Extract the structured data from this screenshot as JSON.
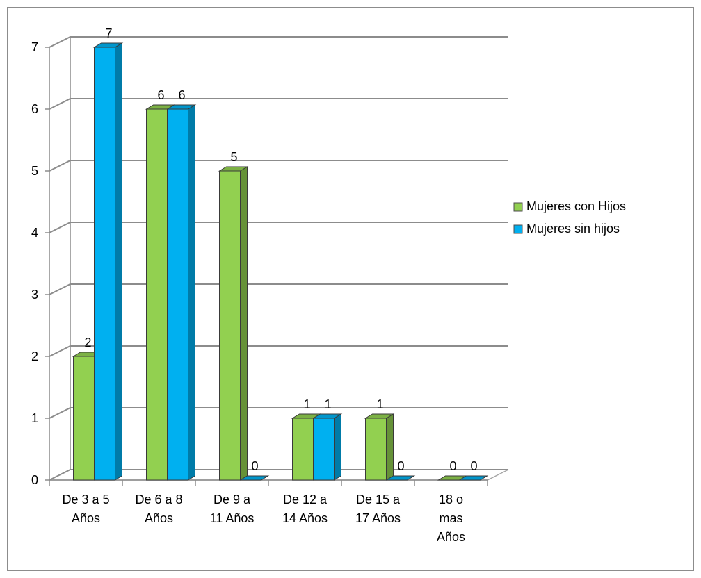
{
  "chart_data": {
    "type": "bar",
    "categories": [
      [
        "De 3 a 5",
        "Años"
      ],
      [
        "De 6 a 8",
        "Años"
      ],
      [
        "De 9 a",
        "11 Años"
      ],
      [
        "De 12 a",
        "14 Años"
      ],
      [
        "De 15 a",
        "17 Años"
      ],
      [
        "18 o",
        "mas",
        "Años"
      ]
    ],
    "series": [
      {
        "name": "Mujeres con Hijos",
        "values": [
          2,
          6,
          5,
          1,
          1,
          0
        ],
        "color": "#92D050"
      },
      {
        "name": "Mujeres sin hijos",
        "values": [
          7,
          6,
          0,
          1,
          0,
          0
        ],
        "color": "#00B0F0"
      }
    ],
    "y_ticks": [
      "0",
      "1",
      "2",
      "3",
      "4",
      "5",
      "6",
      "7"
    ],
    "ylim": [
      0,
      7
    ],
    "grid": true,
    "style": "3d-clustered-column",
    "legend_position": "right"
  }
}
